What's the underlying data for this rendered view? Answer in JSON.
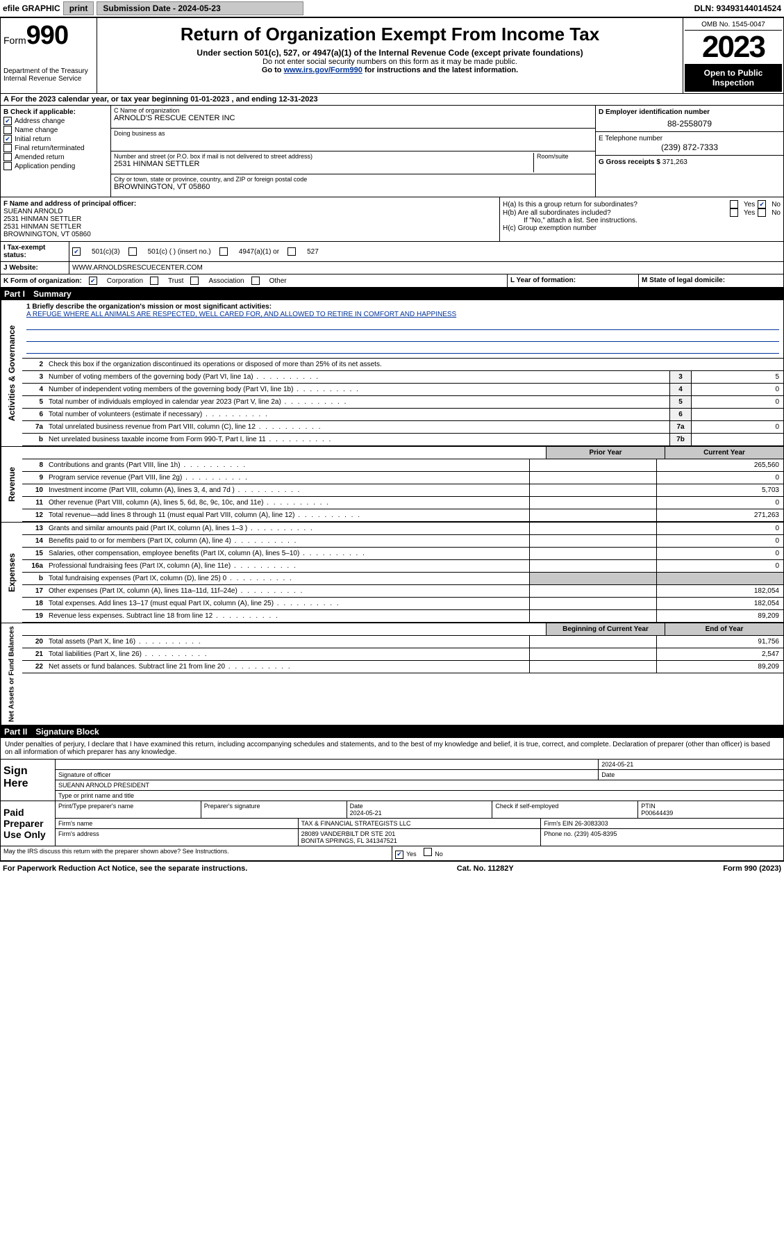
{
  "colors": {
    "text": "#000000",
    "bg": "#ffffff",
    "link": "#003399",
    "shade": "#c8c8c8",
    "header_black": "#000000"
  },
  "topbar": {
    "efile": "efile GRAPHIC",
    "print": "print",
    "submission_label": "Submission Date - 2024-05-23",
    "dln": "DLN: 93493144014524"
  },
  "header": {
    "form_label": "Form",
    "form_number": "990",
    "title": "Return of Organization Exempt From Income Tax",
    "subtitle1": "Under section 501(c), 527, or 4947(a)(1) of the Internal Revenue Code (except private foundations)",
    "subtitle2": "Do not enter social security numbers on this form as it may be made public.",
    "subtitle3_pre": "Go to ",
    "subtitle3_link": "www.irs.gov/Form990",
    "subtitle3_post": " for instructions and the latest information.",
    "dept": "Department of the Treasury\nInternal Revenue Service",
    "omb": "OMB No. 1545-0047",
    "year": "2023",
    "open_public": "Open to Public Inspection"
  },
  "section_a": "A For the 2023 calendar year, or tax year beginning 01-01-2023   , and ending 12-31-2023",
  "check_b": {
    "header": "B Check if applicable:",
    "items": [
      {
        "label": "Address change",
        "checked": true
      },
      {
        "label": "Name change",
        "checked": false
      },
      {
        "label": "Initial return",
        "checked": true
      },
      {
        "label": "Final return/terminated",
        "checked": false
      },
      {
        "label": "Amended return",
        "checked": false
      },
      {
        "label": "Application pending",
        "checked": false
      }
    ]
  },
  "block_c": {
    "name_label": "C Name of organization",
    "name": "ARNOLD'S RESCUE CENTER INC",
    "dba_label": "Doing business as",
    "dba": "",
    "addr_label": "Number and street (or P.O. box if mail is not delivered to street address)",
    "room_label": "Room/suite",
    "addr": "2531 HINMAN SETTLER",
    "city_label": "City or town, state or province, country, and ZIP or foreign postal code",
    "city": "BROWNINGTON, VT  05860"
  },
  "block_right": {
    "d_label": "D Employer identification number",
    "d_val": "88-2558079",
    "e_label": "E Telephone number",
    "e_val": "(239) 872-7333",
    "g_label": "G Gross receipts $",
    "g_val": "371,263"
  },
  "block_f": {
    "label": "F  Name and address of principal officer:",
    "name": "SUEANN ARNOLD",
    "line1": "2531 HINMAN SETTLER",
    "line2": "2531 HINMAN SETTLER",
    "line3": "BROWNINGTON, VT  05860"
  },
  "block_h": {
    "ha_label": "H(a)  Is this a group return for subordinates?",
    "hb_label": "H(b)  Are all subordinates included?",
    "hb_note": "If \"No,\" attach a list. See instructions.",
    "hc_label": "H(c)  Group exemption number",
    "yes": "Yes",
    "no": "No",
    "ha_answer": "No"
  },
  "tax_exempt": {
    "label": "I  Tax-exempt status:",
    "opt1": "501(c)(3)",
    "opt2": "501(c) (  ) (insert no.)",
    "opt3": "4947(a)(1) or",
    "opt4": "527",
    "checked": "501(c)(3)"
  },
  "website": {
    "label": "J  Website:",
    "val": "WWW.ARNOLDSRESCUECENTER.COM"
  },
  "block_k": {
    "label": "K Form of organization:",
    "opts": [
      "Corporation",
      "Trust",
      "Association",
      "Other"
    ],
    "checked": "Corporation",
    "l_label": "L Year of formation:",
    "l_val": "",
    "m_label": "M State of legal domicile:",
    "m_val": ""
  },
  "part1": {
    "header": "Part I",
    "title": "Summary",
    "side_gov": "Activities & Governance",
    "side_rev": "Revenue",
    "side_exp": "Expenses",
    "side_net": "Net Assets or Fund Balances",
    "mission_label": "1  Briefly describe the organization's mission or most significant activities:",
    "mission": "A REFUGE WHERE ALL ANIMALS ARE RESPECTED, WELL CARED FOR, AND ALLOWED TO RETIRE IN COMFORT AND HAPPINESS",
    "line2": "Check this box      if the organization discontinued its operations or disposed of more than 25% of its net assets.",
    "rows_gov": [
      {
        "n": "3",
        "t": "Number of voting members of the governing body (Part VI, line 1a)",
        "box": "3",
        "val": "5"
      },
      {
        "n": "4",
        "t": "Number of independent voting members of the governing body (Part VI, line 1b)",
        "box": "4",
        "val": "0"
      },
      {
        "n": "5",
        "t": "Total number of individuals employed in calendar year 2023 (Part V, line 2a)",
        "box": "5",
        "val": "0"
      },
      {
        "n": "6",
        "t": "Total number of volunteers (estimate if necessary)",
        "box": "6",
        "val": ""
      },
      {
        "n": "7a",
        "t": "Total unrelated business revenue from Part VIII, column (C), line 12",
        "box": "7a",
        "val": "0"
      },
      {
        "n": "b",
        "t": "Net unrelated business taxable income from Form 990-T, Part I, line 11",
        "box": "7b",
        "val": ""
      }
    ],
    "col_prior": "Prior Year",
    "col_current": "Current Year",
    "rows_rev": [
      {
        "n": "8",
        "t": "Contributions and grants (Part VIII, line 1h)",
        "c1": "",
        "c2": "265,560"
      },
      {
        "n": "9",
        "t": "Program service revenue (Part VIII, line 2g)",
        "c1": "",
        "c2": "0"
      },
      {
        "n": "10",
        "t": "Investment income (Part VIII, column (A), lines 3, 4, and 7d )",
        "c1": "",
        "c2": "5,703"
      },
      {
        "n": "11",
        "t": "Other revenue (Part VIII, column (A), lines 5, 6d, 8c, 9c, 10c, and 11e)",
        "c1": "",
        "c2": "0"
      },
      {
        "n": "12",
        "t": "Total revenue—add lines 8 through 11 (must equal Part VIII, column (A), line 12)",
        "c1": "",
        "c2": "271,263"
      }
    ],
    "rows_exp": [
      {
        "n": "13",
        "t": "Grants and similar amounts paid (Part IX, column (A), lines 1–3 )",
        "c1": "",
        "c2": "0"
      },
      {
        "n": "14",
        "t": "Benefits paid to or for members (Part IX, column (A), line 4)",
        "c1": "",
        "c2": "0"
      },
      {
        "n": "15",
        "t": "Salaries, other compensation, employee benefits (Part IX, column (A), lines 5–10)",
        "c1": "",
        "c2": "0"
      },
      {
        "n": "16a",
        "t": "Professional fundraising fees (Part IX, column (A), line 11e)",
        "c1": "",
        "c2": "0"
      },
      {
        "n": "b",
        "t": "Total fundraising expenses (Part IX, column (D), line 25) 0",
        "c1": "shade",
        "c2": "shade"
      },
      {
        "n": "17",
        "t": "Other expenses (Part IX, column (A), lines 11a–11d, 11f–24e)",
        "c1": "",
        "c2": "182,054"
      },
      {
        "n": "18",
        "t": "Total expenses. Add lines 13–17 (must equal Part IX, column (A), line 25)",
        "c1": "",
        "c2": "182,054"
      },
      {
        "n": "19",
        "t": "Revenue less expenses. Subtract line 18 from line 12",
        "c1": "",
        "c2": "89,209"
      }
    ],
    "col_begin": "Beginning of Current Year",
    "col_end": "End of Year",
    "rows_net": [
      {
        "n": "20",
        "t": "Total assets (Part X, line 16)",
        "c1": "",
        "c2": "91,756"
      },
      {
        "n": "21",
        "t": "Total liabilities (Part X, line 26)",
        "c1": "",
        "c2": "2,547"
      },
      {
        "n": "22",
        "t": "Net assets or fund balances. Subtract line 21 from line 20",
        "c1": "",
        "c2": "89,209"
      }
    ]
  },
  "part2": {
    "header": "Part II",
    "title": "Signature Block",
    "declaration": "Under penalties of perjury, I declare that I have examined this return, including accompanying schedules and statements, and to the best of my knowledge and belief, it is true, correct, and complete. Declaration of preparer (other than officer) is based on all information of which preparer has any knowledge.",
    "sign_here": "Sign Here",
    "sig_officer_label": "Signature of officer",
    "sig_name": "SUEANN ARNOLD PRESIDENT",
    "sig_type_label": "Type or print name and title",
    "sig_date": "2024-05-21",
    "date_label": "Date",
    "paid_prep": "Paid Preparer Use Only",
    "prep_name_label": "Print/Type preparer's name",
    "prep_sig_label": "Preparer's signature",
    "prep_date": "2024-05-21",
    "check_self": "Check      if self-employed",
    "ptin_label": "PTIN",
    "ptin": "P00644439",
    "firm_name_label": "Firm's name",
    "firm_name": "TAX & FINANCIAL STRATEGISTS LLC",
    "firm_ein_label": "Firm's EIN",
    "firm_ein": "26-3083303",
    "firm_addr_label": "Firm's address",
    "firm_addr1": "28089 VANDERBILT DR STE 201",
    "firm_addr2": "BONITA SPRINGS, FL  341347521",
    "phone_label": "Phone no.",
    "phone": "(239) 405-8395",
    "may_irs": "May the IRS discuss this return with the preparer shown above? See Instructions.",
    "may_yes": "Yes",
    "may_no": "No"
  },
  "footer": {
    "left": "For Paperwork Reduction Act Notice, see the separate instructions.",
    "mid": "Cat. No. 11282Y",
    "right": "Form 990 (2023)"
  }
}
